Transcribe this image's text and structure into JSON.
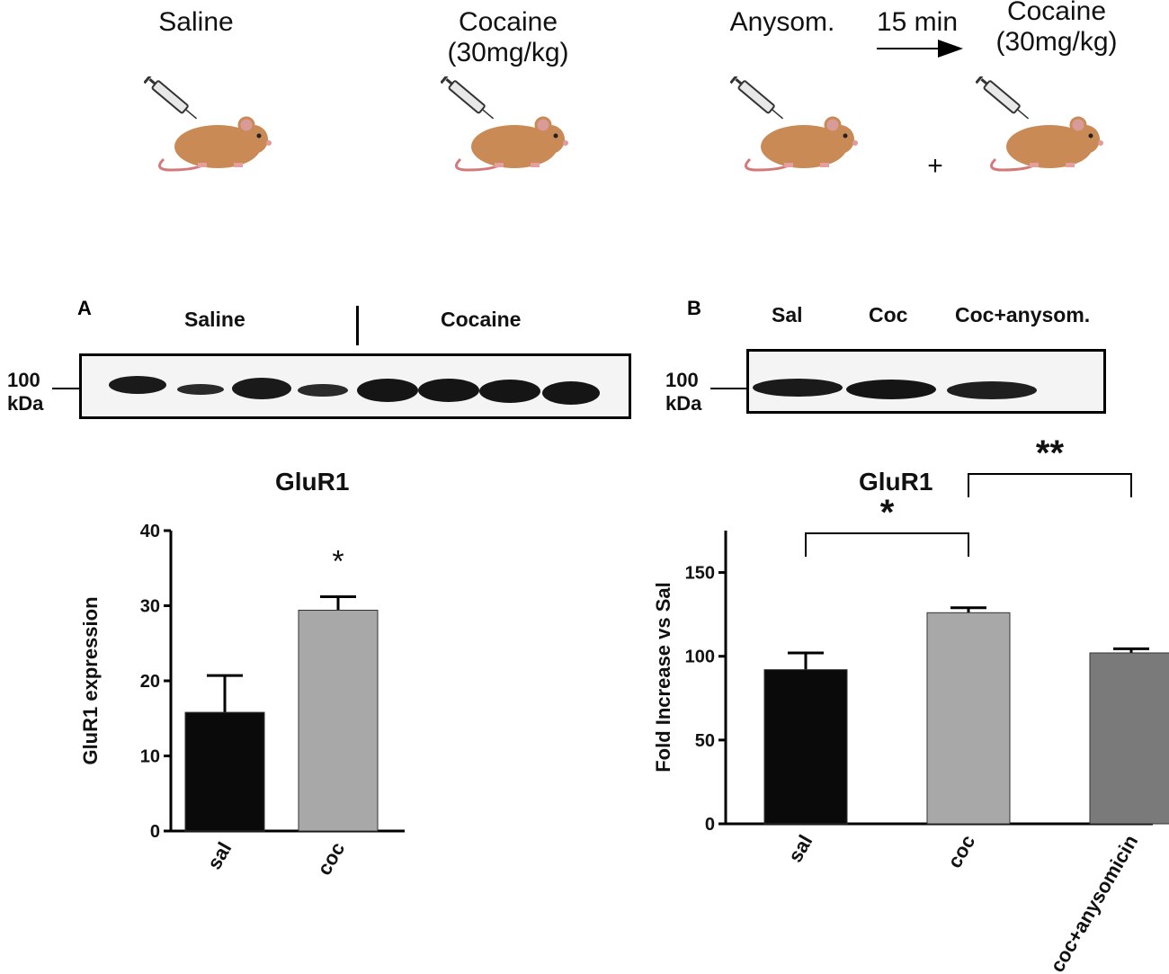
{
  "schema": {
    "groups": [
      {
        "label_line1": "Saline",
        "label_line2": ""
      },
      {
        "label_line1": "Cocaine",
        "label_line2": "(30mg/kg)"
      },
      {
        "label_line1": "Anysom.",
        "label_line2": ""
      },
      {
        "label_line1": "Cocaine",
        "label_line2": "(30mg/kg)"
      }
    ],
    "interval": "15 min",
    "plus": "+"
  },
  "panel_a": {
    "letter": "A",
    "lane_labels": [
      "Saline",
      "Cocaine"
    ],
    "marker_value": "100",
    "marker_unit": "kDa"
  },
  "panel_b": {
    "letter": "B",
    "lane_labels": [
      "Sal",
      "Coc",
      "Coc+anysom."
    ],
    "marker_value": "100",
    "marker_unit": "kDa"
  },
  "colors": {
    "bar_black": "#0a0a0a",
    "bar_light_gray": "#a8a8a8",
    "bar_dark_gray": "#7a7a7a",
    "band": "#1a1a1a"
  },
  "chart_data": [
    {
      "type": "bar",
      "title": "GluR1",
      "ylabel": "GluR1 expression",
      "xlabel": "",
      "categories": [
        "sal",
        "coc"
      ],
      "values": [
        15.8,
        29.4
      ],
      "errors": [
        4.9,
        1.8
      ],
      "ylim": [
        0,
        40
      ],
      "yticks": [
        0,
        10,
        20,
        30,
        40
      ],
      "significance": [
        {
          "category": "coc",
          "label": "*"
        }
      ]
    },
    {
      "type": "bar",
      "title": "GluR1",
      "ylabel": "Fold Increase vs Sal",
      "xlabel": "",
      "categories": [
        "sal",
        "coc",
        "coc+anysomicin"
      ],
      "values": [
        92,
        126,
        102
      ],
      "errors": [
        10,
        3,
        2.5
      ],
      "ylim": [
        0,
        175
      ],
      "yticks": [
        0,
        50,
        100,
        150
      ],
      "significance": [
        {
          "between": [
            "sal",
            "coc"
          ],
          "label": "*"
        },
        {
          "between": [
            "coc",
            "coc+anysomicin"
          ],
          "label": "**"
        }
      ]
    }
  ]
}
